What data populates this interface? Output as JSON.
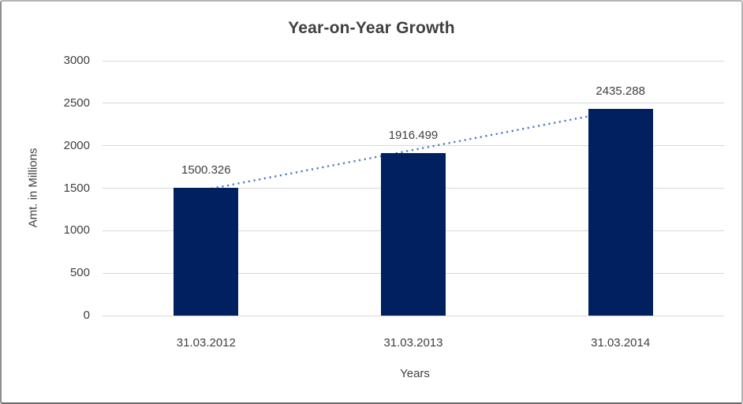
{
  "chart_data": {
    "type": "bar",
    "title": "Year-on-Year Growth",
    "categories": [
      "31.03.2012",
      "31.03.2013",
      "31.03.2014"
    ],
    "values": [
      1500.326,
      1916.499,
      2435.288
    ],
    "data_labels": [
      "1500.326",
      "1916.499",
      "2435.288"
    ],
    "xlabel": "Years",
    "ylabel": "Amt. in Millions",
    "ylim": [
      0,
      3000
    ],
    "yticks": [
      0,
      500,
      1000,
      1500,
      2000,
      2500,
      3000
    ],
    "grid": true,
    "legend": "none",
    "bar_color": "#002060",
    "trendline": {
      "type": "linear",
      "style": "dotted",
      "color": "#4A7DBE"
    },
    "gridline_color": "#D9D9D9",
    "text_color": "#404040"
  }
}
